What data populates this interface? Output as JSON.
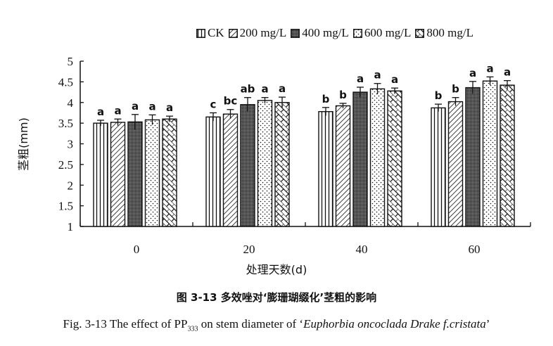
{
  "chart_data": {
    "type": "bar",
    "title": "",
    "xlabel": "处理天数(d)",
    "ylabel": "茎粗(mm)",
    "ylim": [
      1,
      5
    ],
    "yticks": [
      "1",
      "1.5",
      "2",
      "2.5",
      "3",
      "3.5",
      "4",
      "4.5",
      "5"
    ],
    "categories": [
      "0",
      "20",
      "40",
      "60"
    ],
    "legend_position": "top-right",
    "grid": false,
    "series": [
      {
        "name": "CK",
        "pattern": "vertical-lines",
        "values": [
          3.5,
          3.65,
          3.78,
          3.87
        ],
        "errors": [
          0.07,
          0.1,
          0.1,
          0.09
        ],
        "letters": [
          "a",
          "c",
          "b",
          "b"
        ]
      },
      {
        "name": "200 mg/L",
        "pattern": "diagonal-lines",
        "values": [
          3.52,
          3.72,
          3.92,
          4.02
        ],
        "errors": [
          0.08,
          0.11,
          0.06,
          0.1
        ],
        "letters": [
          "a",
          "bc",
          "b",
          "b"
        ]
      },
      {
        "name": "400 mg/L",
        "pattern": "dense-dots",
        "values": [
          3.53,
          3.95,
          4.25,
          4.36
        ],
        "errors": [
          0.18,
          0.17,
          0.12,
          0.15
        ],
        "letters": [
          "a",
          "ab",
          "a",
          "a"
        ]
      },
      {
        "name": "600 mg/L",
        "pattern": "sparse-dots",
        "values": [
          3.58,
          4.05,
          4.33,
          4.52
        ],
        "errors": [
          0.12,
          0.07,
          0.13,
          0.1
        ],
        "letters": [
          "a",
          "a",
          "a",
          "a"
        ]
      },
      {
        "name": "800 mg/L",
        "pattern": "diagonal-brick",
        "values": [
          3.6,
          4.0,
          4.28,
          4.42
        ],
        "errors": [
          0.07,
          0.13,
          0.07,
          0.11
        ],
        "letters": [
          "a",
          "a",
          "a",
          "a"
        ]
      }
    ]
  },
  "caption": {
    "cn": "图 3-13  多效唑对‘膨珊瑚缀化’茎粗的影响",
    "en_prefix": "Fig. 3-13 The effect of PP",
    "en_sub": "333",
    "en_mid": " on stem diameter of ‘",
    "en_italic": "Euphorbia oncoclada Drake f.cristata",
    "en_suffix": "’"
  }
}
